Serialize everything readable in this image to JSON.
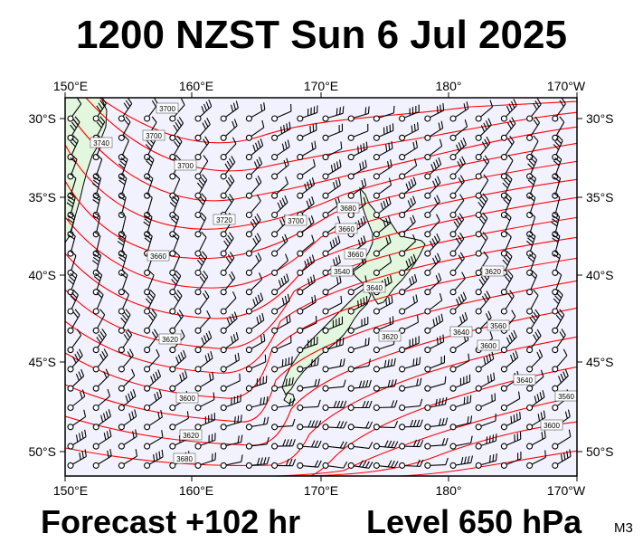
{
  "title": "1200 NZST Sun 6 Jul 2025",
  "forecast_label": "Forecast +102 hr",
  "level_label": "Level 650 hPa",
  "product_code": "M3",
  "colors": {
    "background": "#f2f2ff",
    "land": "#e2f7de",
    "contour": "#ff0000",
    "coast": "#000000",
    "wind": "#000000"
  },
  "axes": {
    "lon_ticks": [
      "150°E",
      "160°E",
      "170°E",
      "180°",
      "170°W"
    ],
    "lat_ticks": [
      "30°S",
      "35°S",
      "40°S",
      "45°S",
      "50°S"
    ]
  },
  "contour_labels": [
    "3700",
    "3740",
    "3700",
    "3720",
    "3660",
    "3700",
    "3680",
    "3660",
    "3660",
    "3640",
    "3620",
    "3600",
    "3620",
    "3680",
    "3620",
    "3640",
    "3560",
    "3600",
    "3560",
    "3540",
    "3620",
    "3640",
    "3600",
    "3700"
  ]
}
